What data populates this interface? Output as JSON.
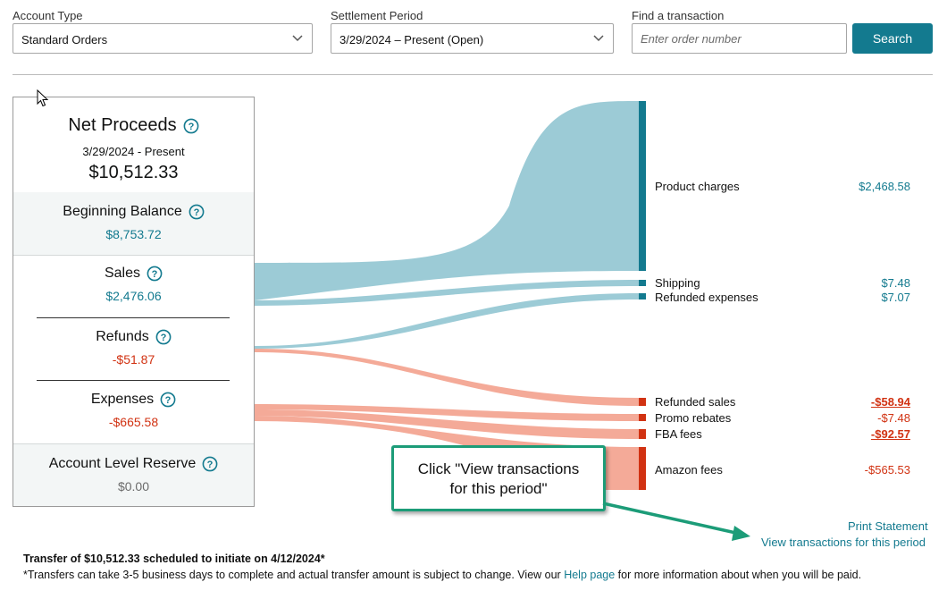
{
  "filters": {
    "account_type_label": "Account Type",
    "account_type_value": "Standard Orders",
    "settlement_label": "Settlement Period",
    "settlement_value": "3/29/2024 – Present (Open)",
    "find_label": "Find a transaction",
    "find_placeholder": "Enter order number",
    "search_label": "Search"
  },
  "summary": {
    "net_title": "Net Proceeds",
    "net_period": "3/29/2024 - Present",
    "net_value": "$10,512.33",
    "beginning_title": "Beginning Balance",
    "beginning_value": "$8,753.72",
    "sales_title": "Sales",
    "sales_value": "$2,476.06",
    "refunds_title": "Refunds",
    "refunds_value": "-$51.87",
    "expenses_title": "Expenses",
    "expenses_value": "-$665.58",
    "reserve_title": "Account Level Reserve",
    "reserve_value": "$0.00"
  },
  "breakdown": [
    {
      "label": "Product charges",
      "value": "$2,468.58"
    },
    {
      "label": "Shipping",
      "value": "$7.48"
    },
    {
      "label": "Refunded expenses",
      "value": "$7.07"
    },
    {
      "label": "Refunded sales",
      "value": "-$58.94"
    },
    {
      "label": "Promo rebates",
      "value": "-$7.48"
    },
    {
      "label": "FBA fees",
      "value": "-$92.57"
    },
    {
      "label": "Amazon fees",
      "value": "-$565.53"
    }
  ],
  "callout": {
    "line1": "Click \"View transactions",
    "line2": "for this period\""
  },
  "links": {
    "print": "Print Statement",
    "view": "View transactions for this period"
  },
  "footer": {
    "transfer": "Transfer of $10,512.33 scheduled to initiate on 4/12/2024*",
    "note_before": "*Transfers can take 3-5 business days to complete and actual transfer amount is subject to change. View our ",
    "help_link": "Help page",
    "note_after": " for more information about when you will be paid."
  },
  "colors": {
    "teal": "#137a8f",
    "flow_teal": "#9ccbd6",
    "flow_red": "#f4aa98",
    "bar_red": "#d13212",
    "callout_border": "#1c9c78"
  }
}
